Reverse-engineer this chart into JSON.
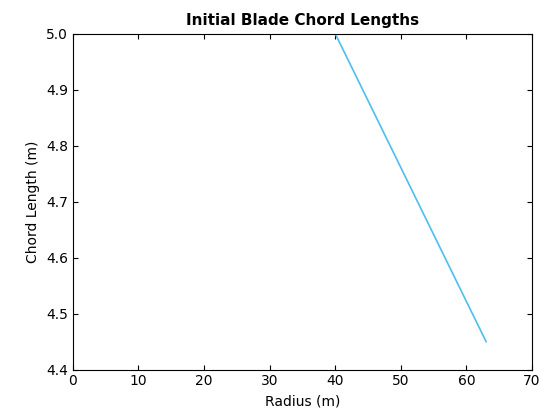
{
  "x": [
    0,
    40,
    63
  ],
  "y": [
    5.0,
    5.0,
    4.45
  ],
  "title": "Initial Blade Chord Lengths",
  "xlabel": "Radius (m)",
  "ylabel": "Chord Length (m)",
  "xlim": [
    0,
    70
  ],
  "ylim": [
    4.4,
    5.0
  ],
  "xticks": [
    0,
    10,
    20,
    30,
    40,
    50,
    60,
    70
  ],
  "yticks": [
    4.4,
    4.5,
    4.6,
    4.7,
    4.8,
    4.9,
    5.0
  ],
  "line_color": "#4DBEEE",
  "line_width": 1.2,
  "background_color": "#ffffff",
  "title_fontsize": 11,
  "label_fontsize": 10,
  "tick_fontsize": 10
}
